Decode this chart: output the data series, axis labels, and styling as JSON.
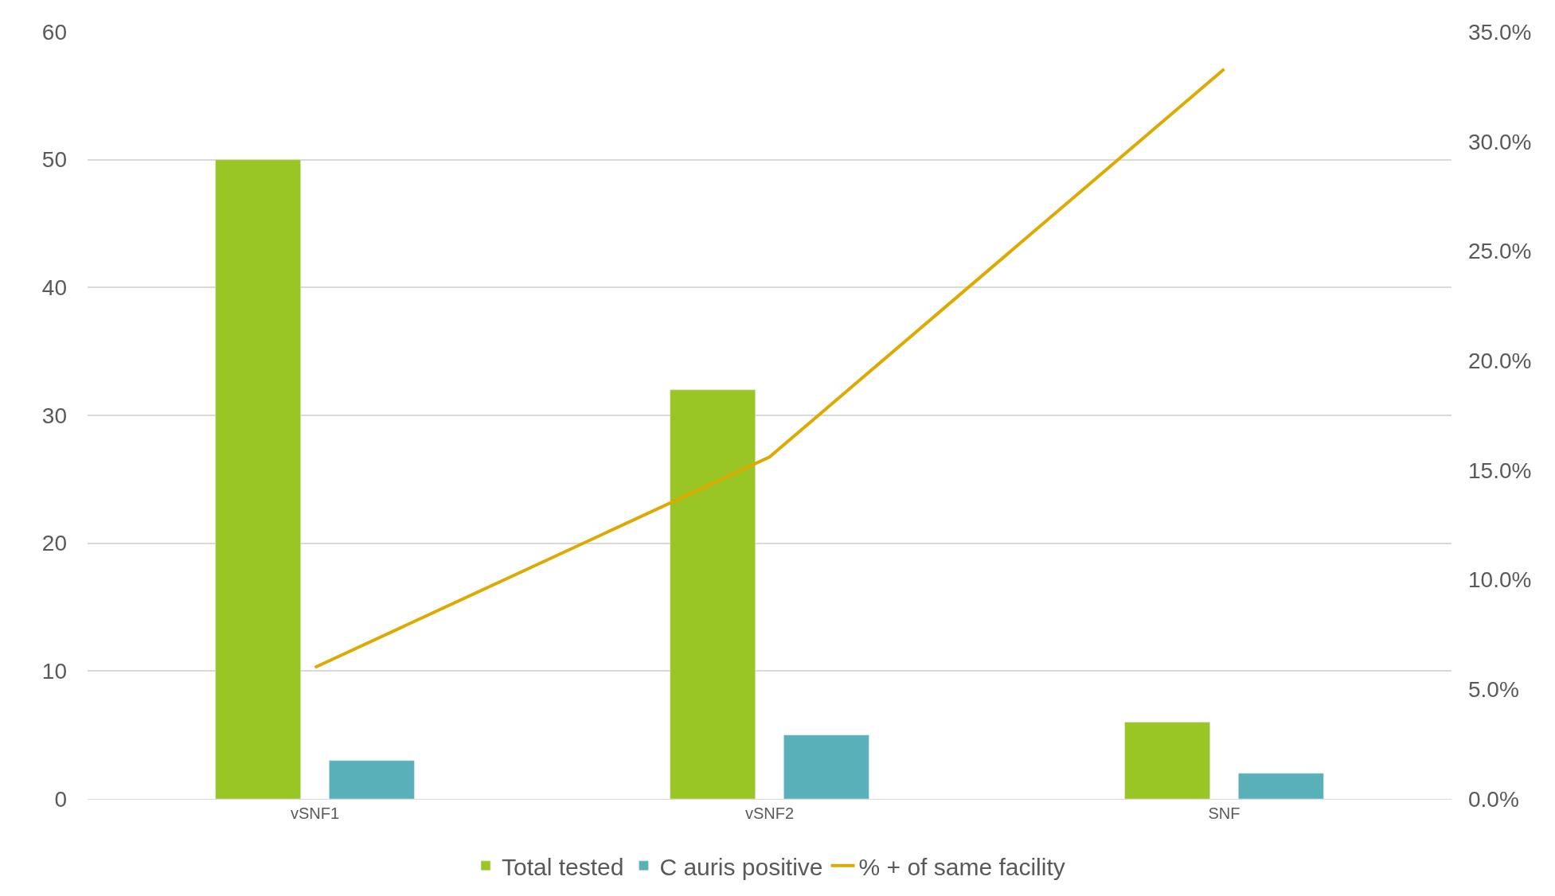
{
  "chart_data": {
    "type": "bar",
    "categories": [
      "vSNF1",
      "vSNF2",
      "SNF"
    ],
    "series": [
      {
        "name": "Total tested",
        "color": "#99c624",
        "values": [
          50,
          32,
          6
        ]
      },
      {
        "name": "C auris positive",
        "color": "#5ab0b8",
        "values": [
          3,
          5,
          2
        ]
      },
      {
        "name": "% + of same facility",
        "color": "#dcaa00",
        "values": [
          6.0,
          15.6,
          33.3
        ],
        "type": "line",
        "axis": "y2"
      }
    ],
    "ylim": [
      0,
      60
    ],
    "yticks": [
      0,
      10,
      20,
      30,
      40,
      50,
      60
    ],
    "y2lim": [
      0,
      35
    ],
    "y2ticks": [
      {
        "value": 0,
        "label": "0.0%"
      },
      {
        "value": 5,
        "label": "5.0%"
      },
      {
        "value": 10,
        "label": "10.0%"
      },
      {
        "value": 15,
        "label": "15.0%"
      },
      {
        "value": 20,
        "label": "20.0%"
      },
      {
        "value": 25,
        "label": "25.0%"
      },
      {
        "value": 30,
        "label": "30.0%"
      },
      {
        "value": 35,
        "label": "35.0%"
      }
    ],
    "grid": "y",
    "legend": "bottom",
    "marker": "none",
    "line_style": "solid"
  }
}
